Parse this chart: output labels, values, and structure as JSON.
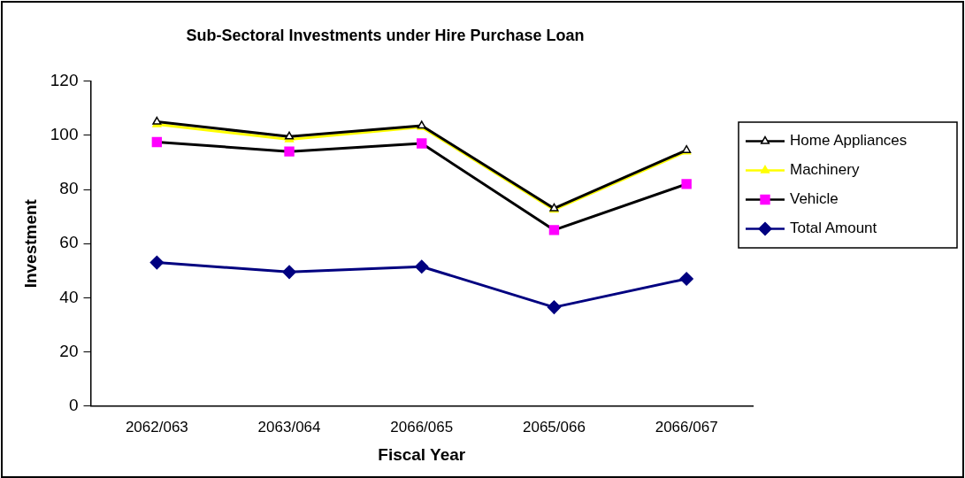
{
  "chart_data": {
    "type": "line",
    "title": "Sub-Sectoral Investments under Hire Purchase Loan",
    "xlabel": "Fiscal Year",
    "ylabel": "Investment",
    "categories": [
      "2062/063",
      "2063/064",
      "2066/065",
      "2065/066",
      "2066/067"
    ],
    "series": [
      {
        "name": "Home Appliances",
        "color": "#000000",
        "colors": [
          "#ffffff",
          "#ffffff",
          "#ffffff",
          "#ffffff",
          "#ffffff"
        ],
        "marker": "triangle",
        "values": [
          105,
          99.5,
          103.5,
          73,
          94.5
        ]
      },
      {
        "name": "Machinery",
        "color": "#ffff00",
        "marker": "triangle",
        "values": [
          104,
          98.5,
          103,
          72.5,
          94
        ]
      },
      {
        "name": "Vehicle",
        "color": "#000000",
        "colors": [
          "#ff00ff",
          "#ff00ff",
          "#ff00ff",
          "#ff00ff",
          "#ff00ff"
        ],
        "marker": "square",
        "values": [
          97.5,
          94,
          97,
          65,
          82
        ]
      },
      {
        "name": "Total Amount",
        "color": "#000080",
        "marker": "diamond",
        "values": [
          53,
          49.5,
          51.5,
          36.5,
          47
        ]
      }
    ],
    "ylim": [
      0,
      120
    ],
    "yticks": [
      0,
      20,
      40,
      60,
      80,
      100,
      120
    ],
    "grid": false,
    "legend": "right"
  }
}
